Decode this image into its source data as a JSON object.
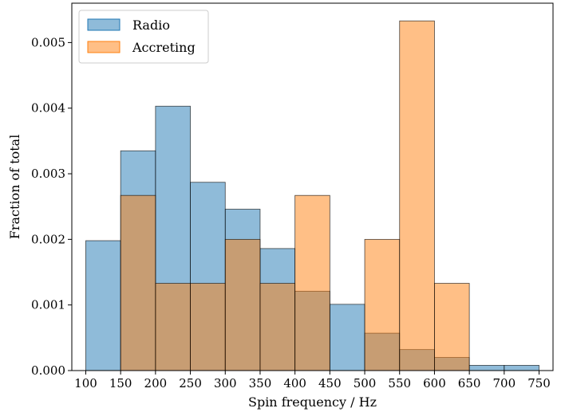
{
  "chart_data": {
    "type": "bar",
    "title": "",
    "xlabel": "Spin frequency / Hz",
    "ylabel": "Fraction of total",
    "xlim": [
      80,
      770
    ],
    "ylim": [
      0,
      0.0056
    ],
    "xticks": [
      100,
      150,
      200,
      250,
      300,
      350,
      400,
      450,
      500,
      550,
      600,
      650,
      700,
      750
    ],
    "xtick_labels": [
      "100",
      "150",
      "200",
      "250",
      "300",
      "350",
      "400",
      "450",
      "500",
      "550",
      "600",
      "650",
      "700",
      "750"
    ],
    "yticks": [
      0,
      0.001,
      0.002,
      0.003,
      0.004,
      0.005
    ],
    "ytick_labels": [
      "0.000",
      "0.001",
      "0.002",
      "0.003",
      "0.004",
      "0.005"
    ],
    "bin_edges": [
      100,
      150,
      200,
      250,
      300,
      350,
      400,
      450,
      500,
      550,
      600,
      650,
      700,
      750
    ],
    "legend_position": "top-left",
    "grid": false,
    "series": [
      {
        "name": "Radio",
        "color": "#1f77b4",
        "opacity": 0.5,
        "values": [
          0.00198,
          0.00335,
          0.00403,
          0.00287,
          0.00246,
          0.00186,
          0.00121,
          0.00101,
          0.00057,
          0.00032,
          0.0002,
          8e-05,
          8e-05
        ]
      },
      {
        "name": "Accreting",
        "color": "#ff7f0e",
        "opacity": 0.5,
        "values": [
          0,
          0.00267,
          0.00133,
          0.00133,
          0.002,
          0.00133,
          0.00267,
          0,
          0.002,
          0.00533,
          0.00133,
          0,
          0
        ]
      }
    ]
  }
}
